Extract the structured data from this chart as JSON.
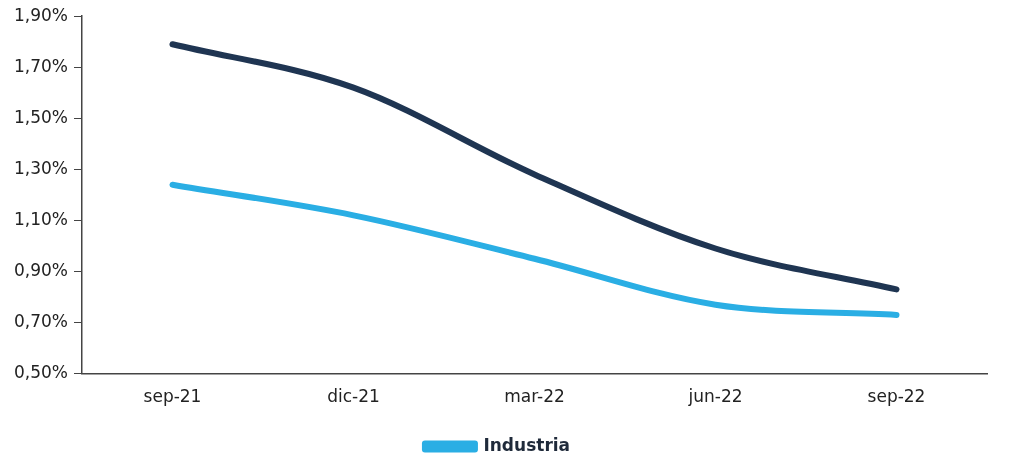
{
  "chart_data": {
    "type": "line",
    "categories": [
      "sep-21",
      "dic-21",
      "mar-22",
      "jun-22",
      "sep-22"
    ],
    "series": [
      {
        "color": "#1f3552",
        "values": [
          1.79,
          1.62,
          1.28,
          0.99,
          0.83
        ]
      },
      {
        "name": "Industria",
        "color": "#2aaee4",
        "values": [
          1.24,
          1.12,
          0.95,
          0.77,
          0.73
        ]
      }
    ],
    "ylim": [
      0.5,
      1.9
    ],
    "yticks": [
      {
        "value": 0.5,
        "label": "0,50%"
      },
      {
        "value": 0.7,
        "label": "0,70%"
      },
      {
        "value": 0.9,
        "label": "0,90%"
      },
      {
        "value": 1.1,
        "label": "1,10%"
      },
      {
        "value": 1.3,
        "label": "1,30%"
      },
      {
        "value": 1.5,
        "label": "1,50%"
      },
      {
        "value": 1.7,
        "label": "1,70%"
      },
      {
        "value": 1.9,
        "label": "1,90%"
      }
    ],
    "grid": false,
    "legend": "bottom",
    "marker": "none",
    "line_style": "solid"
  }
}
